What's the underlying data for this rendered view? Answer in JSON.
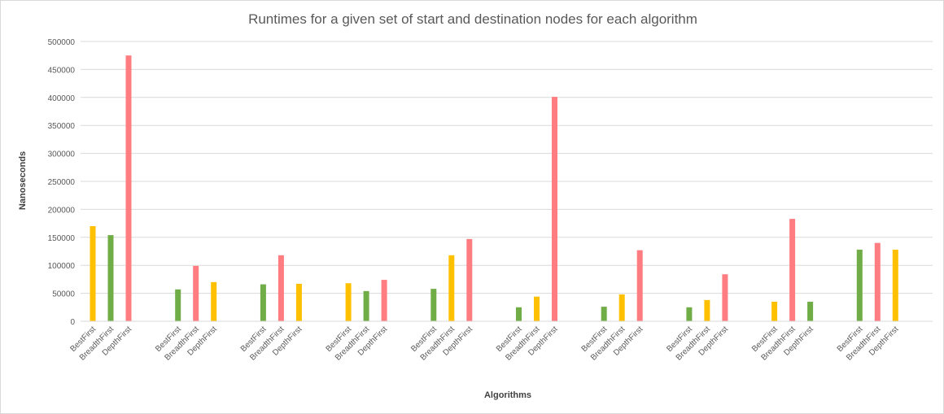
{
  "chart_data": {
    "type": "bar",
    "title": "Runtimes for a given set of start and destination nodes for each algorithm",
    "xlabel": "Algorithms",
    "ylabel": "Nanoseconds",
    "ylim": [
      0,
      500000
    ],
    "yticks": [
      "0",
      "50000",
      "100000",
      "150000",
      "200000",
      "250000",
      "300000",
      "350000",
      "400000",
      "450000",
      "500000"
    ],
    "grid": true,
    "legend": "none",
    "colors": {
      "yellow": "#ffc000",
      "green": "#70ad47",
      "red": "#ff7c80"
    },
    "groups": [
      {
        "bars": [
          {
            "label": "BestFirst",
            "value": 170000,
            "color": "#ffc000"
          },
          {
            "label": "BreadthFirst",
            "value": 154000,
            "color": "#70ad47"
          },
          {
            "label": "DepthFirst",
            "value": 475000,
            "color": "#ff7c80"
          }
        ]
      },
      {
        "bars": [
          {
            "label": "BestFirst",
            "value": 57000,
            "color": "#70ad47"
          },
          {
            "label": "BreadthFirst",
            "value": 99000,
            "color": "#ff7c80"
          },
          {
            "label": "DepthFirst",
            "value": 70000,
            "color": "#ffc000"
          }
        ]
      },
      {
        "bars": [
          {
            "label": "BestFirst",
            "value": 66000,
            "color": "#70ad47"
          },
          {
            "label": "BreadthFirst",
            "value": 118000,
            "color": "#ff7c80"
          },
          {
            "label": "DepthFirst",
            "value": 67000,
            "color": "#ffc000"
          }
        ]
      },
      {
        "bars": [
          {
            "label": "BestFirst",
            "value": 68000,
            "color": "#ffc000"
          },
          {
            "label": "BreadthFirst",
            "value": 54000,
            "color": "#70ad47"
          },
          {
            "label": "DepthFirst",
            "value": 74000,
            "color": "#ff7c80"
          }
        ]
      },
      {
        "bars": [
          {
            "label": "BestFirst",
            "value": 58000,
            "color": "#70ad47"
          },
          {
            "label": "BreadthFirst",
            "value": 118000,
            "color": "#ffc000"
          },
          {
            "label": "DepthFirst",
            "value": 147000,
            "color": "#ff7c80"
          }
        ]
      },
      {
        "bars": [
          {
            "label": "BestFirst",
            "value": 25000,
            "color": "#70ad47"
          },
          {
            "label": "BreadthFirst",
            "value": 44000,
            "color": "#ffc000"
          },
          {
            "label": "DepthFirst",
            "value": 401000,
            "color": "#ff7c80"
          }
        ]
      },
      {
        "bars": [
          {
            "label": "BestFirst",
            "value": 26000,
            "color": "#70ad47"
          },
          {
            "label": "BreadthFirst",
            "value": 48000,
            "color": "#ffc000"
          },
          {
            "label": "DepthFirst",
            "value": 127000,
            "color": "#ff7c80"
          }
        ]
      },
      {
        "bars": [
          {
            "label": "BestFirst",
            "value": 25000,
            "color": "#70ad47"
          },
          {
            "label": "BreadthFirst",
            "value": 38000,
            "color": "#ffc000"
          },
          {
            "label": "DepthFirst",
            "value": 84000,
            "color": "#ff7c80"
          }
        ]
      },
      {
        "bars": [
          {
            "label": "BestFirst",
            "value": 35000,
            "color": "#ffc000"
          },
          {
            "label": "BreadthFirst",
            "value": 183000,
            "color": "#ff7c80"
          },
          {
            "label": "DepthFirst",
            "value": 35000,
            "color": "#70ad47"
          }
        ]
      },
      {
        "bars": [
          {
            "label": "BestFirst",
            "value": 128000,
            "color": "#70ad47"
          },
          {
            "label": "BreadthFirst",
            "value": 140000,
            "color": "#ff7c80"
          },
          {
            "label": "DepthFirst",
            "value": 128000,
            "color": "#ffc000"
          }
        ]
      }
    ]
  }
}
